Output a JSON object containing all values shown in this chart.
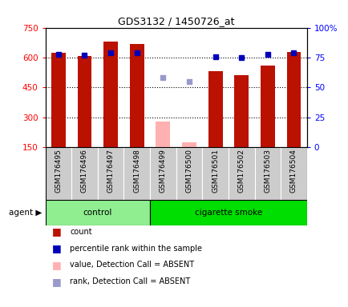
{
  "title": "GDS3132 / 1450726_at",
  "samples": [
    "GSM176495",
    "GSM176496",
    "GSM176497",
    "GSM176498",
    "GSM176499",
    "GSM176500",
    "GSM176501",
    "GSM176502",
    "GSM176503",
    "GSM176504"
  ],
  "count_values": [
    625,
    610,
    680,
    670,
    null,
    null,
    530,
    510,
    560,
    630
  ],
  "count_absent_values": [
    null,
    null,
    null,
    null,
    280,
    175,
    null,
    null,
    null,
    null
  ],
  "percentile_values": [
    78,
    77,
    79,
    79,
    null,
    null,
    76,
    75,
    78,
    79
  ],
  "percentile_absent_values": [
    null,
    null,
    null,
    null,
    58,
    55,
    null,
    null,
    null,
    null
  ],
  "ylim_left": [
    150,
    750
  ],
  "ylim_right": [
    0,
    100
  ],
  "yticks_left": [
    150,
    300,
    450,
    600,
    750
  ],
  "yticks_right": [
    0,
    25,
    50,
    75,
    100
  ],
  "ytick_labels_left": [
    "150",
    "300",
    "450",
    "600",
    "750"
  ],
  "ytick_labels_right": [
    "0",
    "25",
    "50",
    "75",
    "100%"
  ],
  "groups": [
    {
      "label": "control",
      "start": 0,
      "end": 3,
      "color": "#90ee90"
    },
    {
      "label": "cigarette smoke",
      "start": 4,
      "end": 9,
      "color": "#00dd00"
    }
  ],
  "bar_color_present": "#bb1100",
  "bar_color_absent": "#ffb0b0",
  "dot_color_present": "#0000bb",
  "dot_color_absent": "#9999cc",
  "bar_width": 0.55,
  "legend_items": [
    {
      "color": "#bb1100",
      "label": "count"
    },
    {
      "color": "#0000bb",
      "label": "percentile rank within the sample"
    },
    {
      "color": "#ffb0b0",
      "label": "value, Detection Call = ABSENT"
    },
    {
      "color": "#9999cc",
      "label": "rank, Detection Call = ABSENT"
    }
  ],
  "background_color": "#ffffff",
  "tick_label_area_color": "#cccccc",
  "gridline_y": [
    300,
    450,
    600
  ],
  "n": 10
}
